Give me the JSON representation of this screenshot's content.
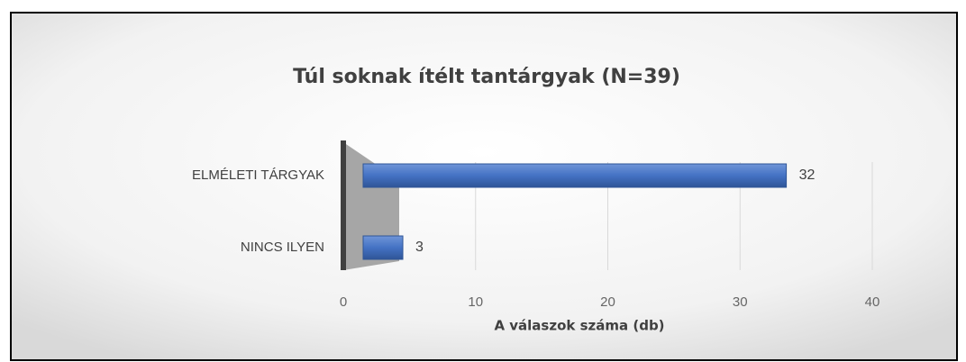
{
  "chart_data": {
    "type": "hbar",
    "title": "Túl soknak ítélt tantárgyak (N=39)",
    "categories": [
      "ELMÉLETI TÁRGYAK",
      "NINCS ILYEN"
    ],
    "values": [
      32,
      3
    ],
    "color": "#4472c4",
    "xlabel": "A válaszok száma (db)",
    "xlim": [
      0,
      40
    ],
    "xticks": [
      0,
      10,
      20,
      30,
      40
    ],
    "grid": true
  }
}
